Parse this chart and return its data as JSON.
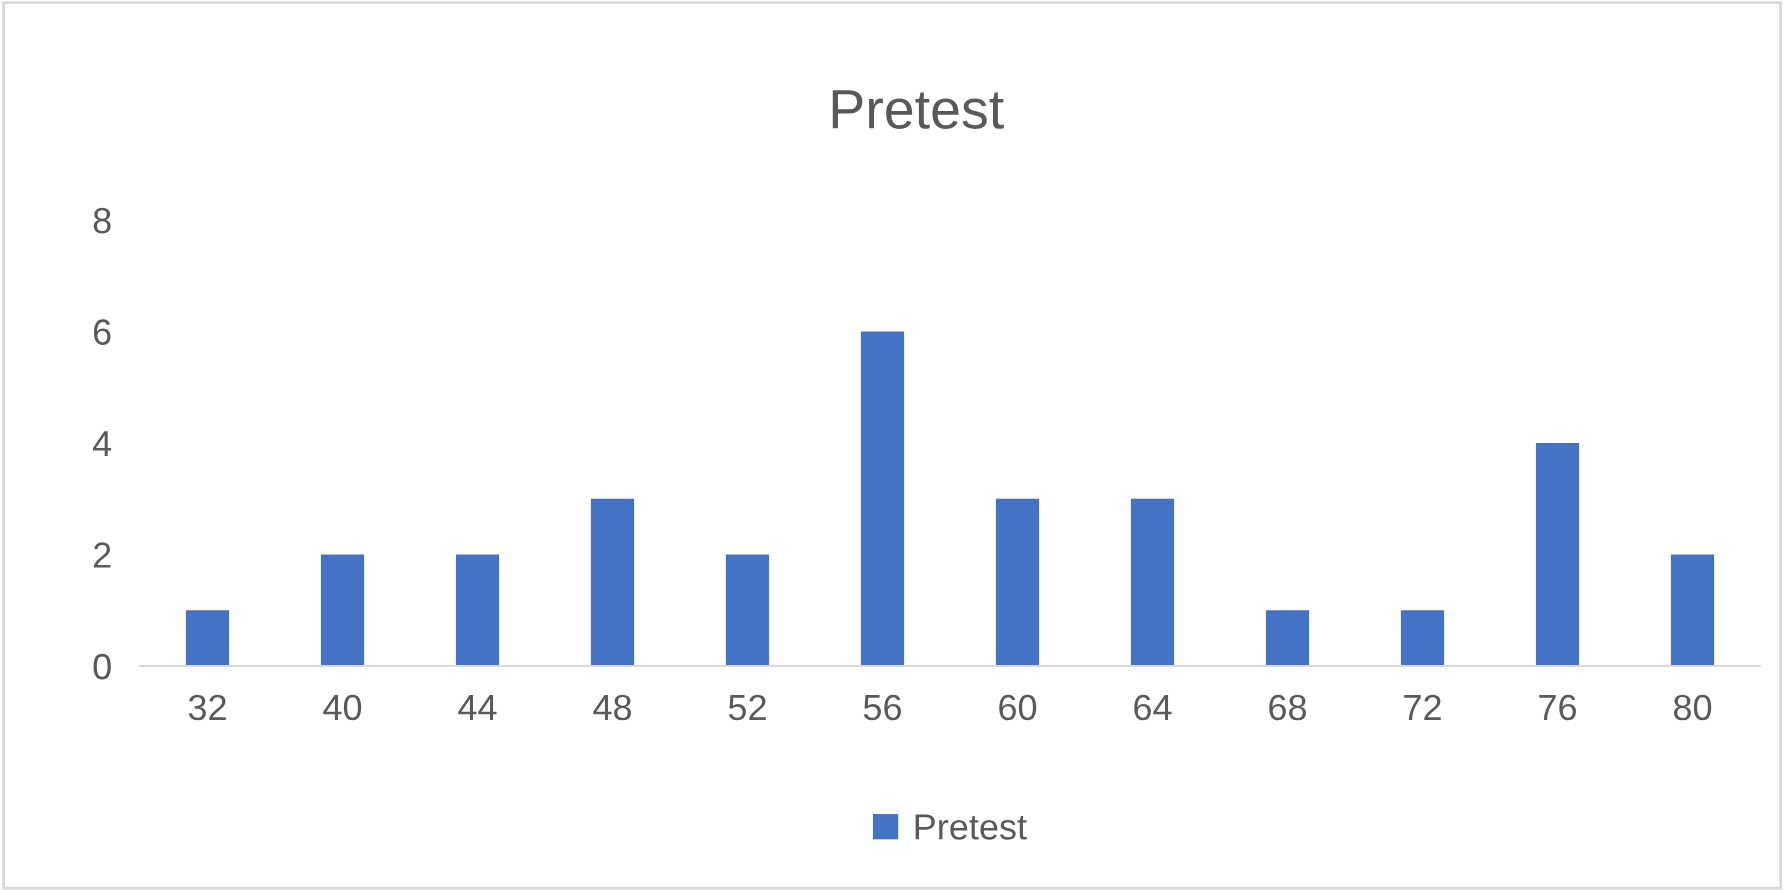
{
  "chart_data": {
    "type": "bar",
    "title": "Pretest",
    "categories": [
      "32",
      "40",
      "44",
      "48",
      "52",
      "56",
      "60",
      "64",
      "68",
      "72",
      "76",
      "80"
    ],
    "series": [
      {
        "name": "Pretest",
        "color": "#4472c4",
        "values": [
          1,
          2,
          2,
          3,
          2,
          6,
          3,
          3,
          1,
          1,
          4,
          2
        ]
      }
    ],
    "ylim": [
      0,
      8
    ],
    "yticks": [
      0,
      2,
      4,
      6,
      8
    ],
    "legend": "bottom",
    "grid": false
  }
}
